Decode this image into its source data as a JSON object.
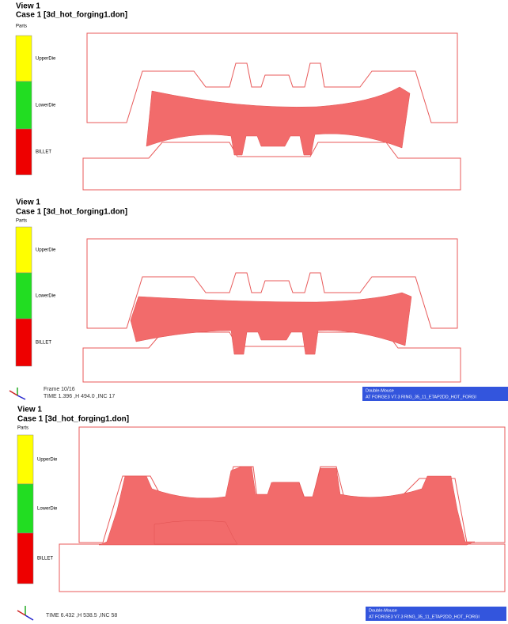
{
  "panels": [
    {
      "view": "View 1",
      "case": "Case 1  [3d_hot_forging1.don]",
      "legend": {
        "title": "Parts",
        "items": [
          "UpperDie",
          "LowerDie",
          "BILLET"
        ]
      }
    },
    {
      "view": "View 1",
      "case": "Case 1  [3d_hot_forging1.don]",
      "legend": {
        "title": "Parts",
        "items": [
          "UpperDie",
          "LowerDie",
          "BILLET"
        ]
      },
      "footer": {
        "frame": "Frame  10/16",
        "status": "TIME   1.396    ,H   494.0    ,INC    17",
        "banner_title": "Double-Mouse",
        "banner": "AT   FORGE3 V7.3 RING_35_11_ETAP2DD_HOT_FORGI"
      }
    },
    {
      "view": "View 1",
      "case": "Case 1  [3d_hot_forging1.don]",
      "legend": {
        "title": "Parts",
        "items": [
          "UpperDie",
          "LowerDie",
          "BILLET"
        ]
      },
      "footer": {
        "status": "TIME   6.432    ,H   538.5    ,INC    58",
        "banner_title": "Double-Mouse",
        "banner": "AT   FORGE3 V7.3 RING_35_11_ETAP2DD_HOT_FORGI"
      }
    }
  ]
}
